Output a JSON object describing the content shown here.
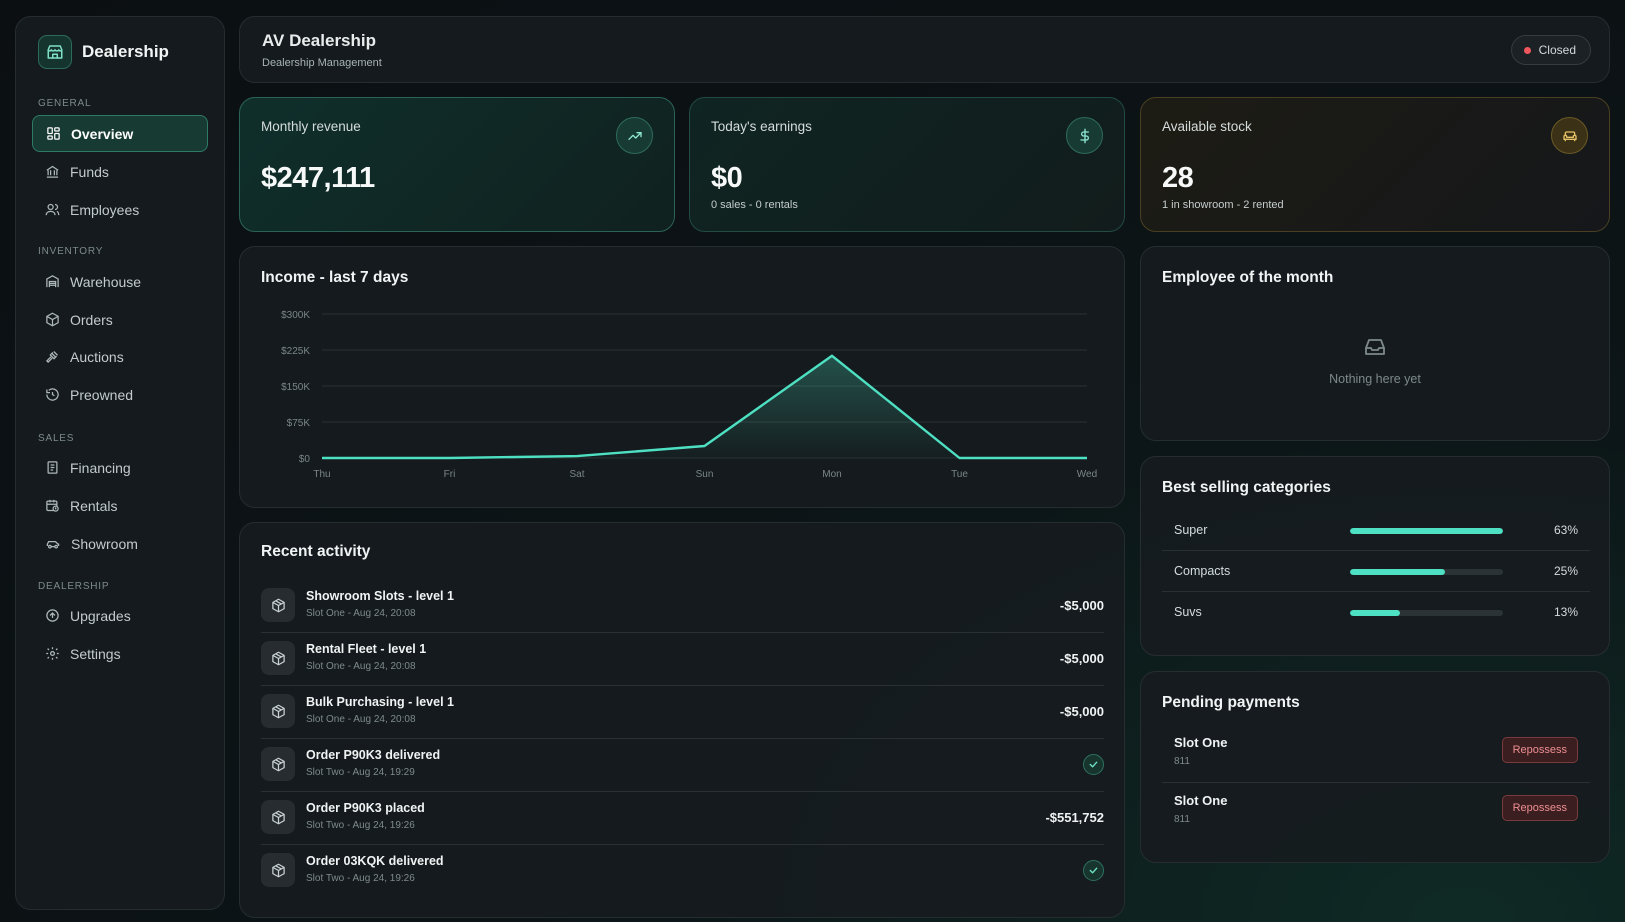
{
  "sidebar": {
    "brand": "Dealership",
    "sections": [
      {
        "label": "GENERAL",
        "items": [
          {
            "label": "Overview",
            "icon": "grid-icon",
            "active": true
          },
          {
            "label": "Funds",
            "icon": "bank-icon"
          },
          {
            "label": "Employees",
            "icon": "users-icon"
          }
        ]
      },
      {
        "label": "INVENTORY",
        "items": [
          {
            "label": "Warehouse",
            "icon": "warehouse-icon"
          },
          {
            "label": "Orders",
            "icon": "package-icon"
          },
          {
            "label": "Auctions",
            "icon": "gavel-icon"
          },
          {
            "label": "Preowned",
            "icon": "history-icon"
          }
        ]
      },
      {
        "label": "SALES",
        "items": [
          {
            "label": "Financing",
            "icon": "receipt-icon"
          },
          {
            "label": "Rentals",
            "icon": "calendar-clock-icon"
          },
          {
            "label": "Showroom",
            "icon": "car-icon"
          }
        ]
      },
      {
        "label": "DEALERSHIP",
        "items": [
          {
            "label": "Upgrades",
            "icon": "arrow-up-circle-icon"
          },
          {
            "label": "Settings",
            "icon": "gear-icon"
          }
        ]
      }
    ]
  },
  "header": {
    "title": "AV Dealership",
    "subtitle": "Dealership Management",
    "status": "Closed",
    "status_color": "#f0575d"
  },
  "stats": {
    "revenue": {
      "label": "Monthly revenue",
      "value": "$247,111",
      "icon": "trending-up-icon"
    },
    "earnings": {
      "label": "Today's earnings",
      "value": "$0",
      "sub": "0 sales - 0 rentals",
      "icon": "dollar-icon"
    },
    "stock": {
      "label": "Available stock",
      "value": "28",
      "sub": "1 in showroom - 2 rented",
      "icon": "sofa-icon"
    }
  },
  "income_card": {
    "title": "Income - last 7 days"
  },
  "chart_data": {
    "type": "area",
    "title": "Income - last 7 days",
    "categories": [
      "Thu",
      "Fri",
      "Sat",
      "Sun",
      "Mon",
      "Tue",
      "Wed"
    ],
    "series": [
      {
        "values": [
          0,
          0,
          4000,
          25000,
          213000,
          0,
          0
        ]
      }
    ],
    "yticks": [
      "$0",
      "$75K",
      "$150K",
      "$225K",
      "$300K"
    ],
    "ylim": [
      0,
      300000
    ],
    "grid": true,
    "line_color": "#4ee0c2"
  },
  "activity": {
    "title": "Recent activity",
    "items": [
      {
        "title": "Showroom Slots - level 1",
        "meta": "Slot One - Aug 24, 20:08",
        "amount": "-$5,000"
      },
      {
        "title": "Rental Fleet - level 1",
        "meta": "Slot One - Aug 24, 20:08",
        "amount": "-$5,000"
      },
      {
        "title": "Bulk Purchasing - level 1",
        "meta": "Slot One - Aug 24, 20:08",
        "amount": "-$5,000"
      },
      {
        "title": "Order P90K3 delivered",
        "meta": "Slot Two - Aug 24, 19:29",
        "amount": null
      },
      {
        "title": "Order P90K3 placed",
        "meta": "Slot Two - Aug 24, 19:26",
        "amount": "-$551,752"
      },
      {
        "title": "Order 03KQK delivered",
        "meta": "Slot Two - Aug 24, 19:26",
        "amount": null
      }
    ]
  },
  "employee_of_month": {
    "title": "Employee of the month",
    "empty_text": "Nothing here yet"
  },
  "best_selling": {
    "title": "Best selling categories",
    "items": [
      {
        "name": "Super",
        "pct": "63%",
        "fill": 1.0
      },
      {
        "name": "Compacts",
        "pct": "25%",
        "fill": 0.62
      },
      {
        "name": "Suvs",
        "pct": "13%",
        "fill": 0.33
      }
    ]
  },
  "pending": {
    "title": "Pending payments",
    "items": [
      {
        "name": "Slot One",
        "number": "811",
        "action": "Repossess"
      },
      {
        "name": "Slot One",
        "number": "811",
        "action": "Repossess"
      }
    ]
  }
}
